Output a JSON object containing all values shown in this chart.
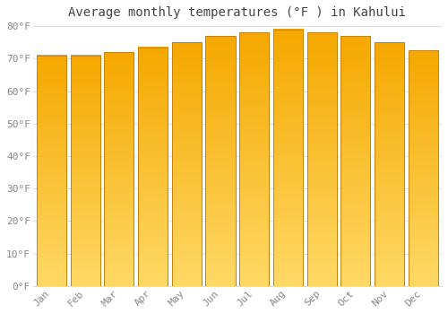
{
  "title": "Average monthly temperatures (°F ) in Kahului",
  "months": [
    "Jan",
    "Feb",
    "Mar",
    "Apr",
    "May",
    "Jun",
    "Jul",
    "Aug",
    "Sep",
    "Oct",
    "Nov",
    "Dec"
  ],
  "values": [
    71,
    71,
    72,
    73.5,
    75,
    77,
    78,
    79,
    78,
    77,
    75,
    72.5
  ],
  "bar_color_top": "#FFD966",
  "bar_color_bottom": "#F5A800",
  "bar_edge_color": "#C8820A",
  "background_color": "#FFFFFF",
  "grid_color": "#DDDDDD",
  "text_color": "#888888",
  "title_color": "#444444",
  "ylim": [
    0,
    80
  ],
  "yticks": [
    0,
    10,
    20,
    30,
    40,
    50,
    60,
    70,
    80
  ],
  "title_fontsize": 10,
  "tick_fontsize": 8,
  "bar_width": 0.88
}
